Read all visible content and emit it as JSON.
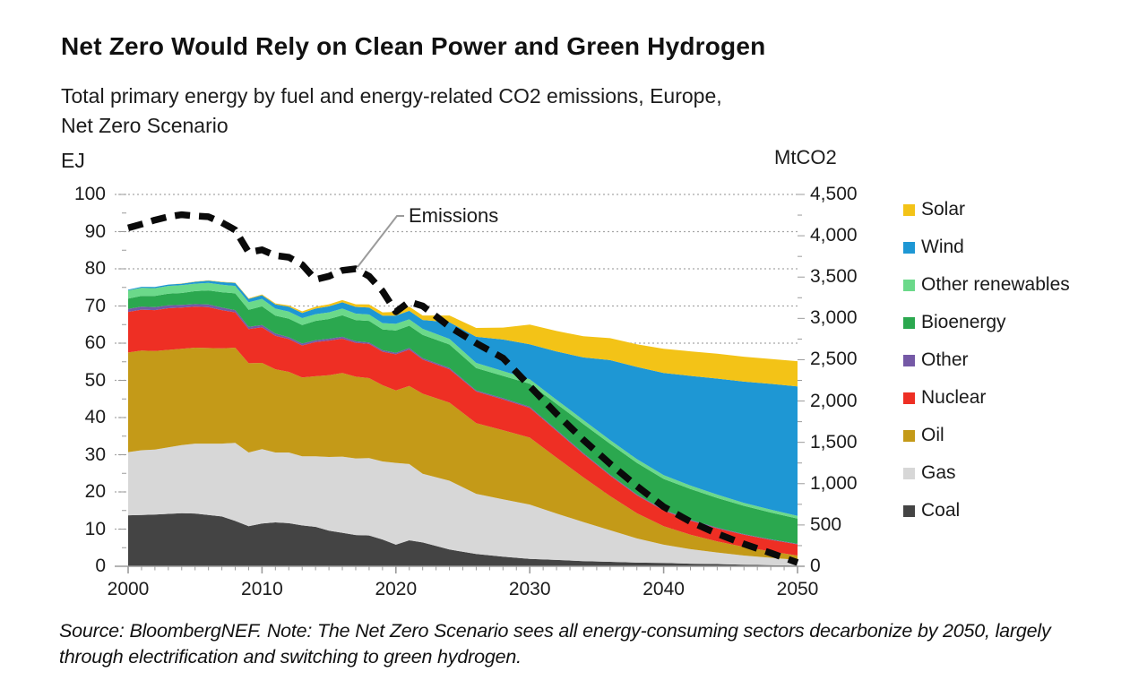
{
  "header": {
    "title": "Net Zero Would Rely on Clean Power and Green Hydrogen",
    "subtitle": "Total primary energy by fuel and energy-related CO2 emissions, Europe,\nNet Zero Scenario"
  },
  "chart_data": {
    "type": "area",
    "stacked": true,
    "title": "Net Zero Would Rely on Clean Power and Green Hydrogen",
    "x": [
      2000,
      2001,
      2002,
      2003,
      2004,
      2005,
      2006,
      2007,
      2008,
      2009,
      2010,
      2011,
      2012,
      2013,
      2014,
      2015,
      2016,
      2017,
      2018,
      2019,
      2020,
      2021,
      2022,
      2024,
      2026,
      2028,
      2030,
      2032,
      2034,
      2036,
      2038,
      2040,
      2042,
      2044,
      2046,
      2048,
      2050
    ],
    "series": [
      {
        "name": "Coal",
        "color": "#444444",
        "values": [
          13.7,
          13.8,
          13.9,
          14.1,
          14.3,
          14.2,
          13.8,
          13.4,
          12.2,
          10.8,
          11.5,
          11.8,
          11.6,
          11.0,
          10.6,
          9.6,
          9.0,
          8.4,
          8.3,
          7.2,
          5.8,
          7.0,
          6.4,
          4.5,
          3.3,
          2.6,
          2.0,
          1.7,
          1.4,
          1.2,
          1.0,
          0.9,
          0.7,
          0.6,
          0.4,
          0.3,
          0.2
        ]
      },
      {
        "name": "Gas",
        "color": "#D7D7D7",
        "values": [
          17.0,
          17.4,
          17.5,
          17.9,
          18.3,
          18.8,
          19.2,
          19.6,
          21.0,
          19.8,
          20.0,
          18.8,
          19.0,
          18.6,
          19.0,
          19.8,
          20.5,
          20.6,
          20.8,
          21.0,
          22.0,
          20.5,
          18.5,
          18.5,
          16.2,
          15.4,
          14.6,
          12.5,
          10.5,
          8.5,
          6.5,
          4.9,
          3.9,
          3.1,
          2.5,
          2.0,
          1.5
        ]
      },
      {
        "name": "Oil",
        "color": "#C49A18",
        "values": [
          26.8,
          26.8,
          26.5,
          26.2,
          25.9,
          25.8,
          25.7,
          25.6,
          25.6,
          24.0,
          23.2,
          22.4,
          21.7,
          21.2,
          21.5,
          22.0,
          22.5,
          22.0,
          21.5,
          20.5,
          19.5,
          21.0,
          21.5,
          21.0,
          19.0,
          18.6,
          18.0,
          15.0,
          12.0,
          9.2,
          6.8,
          5.0,
          3.9,
          3.0,
          2.3,
          1.7,
          1.2
        ]
      },
      {
        "name": "Nuclear",
        "color": "#EE2F24",
        "values": [
          10.9,
          11.0,
          11.0,
          11.2,
          11.1,
          11.0,
          11.0,
          10.3,
          9.5,
          9.2,
          9.6,
          9.0,
          8.8,
          8.6,
          9.2,
          9.3,
          9.2,
          9.1,
          9.2,
          9.0,
          9.7,
          9.8,
          9.2,
          9.0,
          8.5,
          8.3,
          8.0,
          7.2,
          6.3,
          5.5,
          4.8,
          4.2,
          3.8,
          3.5,
          3.3,
          3.1,
          3.0
        ]
      },
      {
        "name": "Other",
        "color": "#7559A6",
        "values": [
          0.8,
          0.8,
          0.8,
          0.8,
          0.7,
          0.7,
          0.7,
          0.7,
          0.6,
          0.6,
          0.6,
          0.6,
          0.5,
          0.5,
          0.5,
          0.5,
          0.5,
          0.4,
          0.4,
          0.4,
          0.4,
          0.4,
          0.35,
          0.35,
          0.3,
          0.3,
          0.3,
          0.28,
          0.26,
          0.24,
          0.22,
          0.2,
          0.2,
          0.18,
          0.16,
          0.16,
          0.15
        ]
      },
      {
        "name": "Bioenergy",
        "color": "#2BA84F",
        "values": [
          2.8,
          2.9,
          3.0,
          3.1,
          3.2,
          3.5,
          3.8,
          4.1,
          4.5,
          4.6,
          5.0,
          4.8,
          5.0,
          5.0,
          5.2,
          5.3,
          5.8,
          5.7,
          5.8,
          5.6,
          6.0,
          6.0,
          6.3,
          6.3,
          6.0,
          6.0,
          6.2,
          7.0,
          7.8,
          8.3,
          8.5,
          8.3,
          8.3,
          8.0,
          7.6,
          7.2,
          6.8
        ]
      },
      {
        "name": "Other renewables",
        "color": "#6BD98A",
        "values": [
          2.2,
          2.2,
          2.1,
          2.1,
          2.1,
          2.0,
          2.0,
          2.0,
          2.0,
          2.0,
          2.0,
          1.9,
          1.9,
          1.85,
          1.8,
          1.8,
          1.8,
          1.75,
          1.7,
          1.7,
          1.8,
          1.7,
          1.6,
          1.5,
          1.4,
          1.3,
          1.2,
          1.1,
          1.1,
          1.0,
          1.0,
          1.0,
          0.9,
          0.9,
          0.8,
          0.8,
          0.7
        ]
      },
      {
        "name": "Wind",
        "color": "#1E97D4",
        "values": [
          0.2,
          0.25,
          0.3,
          0.35,
          0.4,
          0.5,
          0.6,
          0.7,
          0.8,
          0.9,
          1.0,
          1.1,
          1.3,
          1.4,
          1.5,
          1.6,
          1.7,
          1.8,
          1.9,
          2.0,
          2.2,
          2.3,
          2.4,
          4.5,
          7.0,
          8.5,
          9.4,
          13.0,
          16.8,
          21.5,
          24.8,
          27.5,
          29.5,
          31.2,
          32.6,
          33.8,
          34.8
        ]
      },
      {
        "name": "Solar",
        "color": "#F3C317",
        "values": [
          0.0,
          0.0,
          0.0,
          0.0,
          0.05,
          0.05,
          0.1,
          0.1,
          0.1,
          0.15,
          0.2,
          0.3,
          0.35,
          0.4,
          0.5,
          0.55,
          0.6,
          0.7,
          0.8,
          0.9,
          1.0,
          1.1,
          1.2,
          1.8,
          2.4,
          3.2,
          5.3,
          5.5,
          5.7,
          5.9,
          6.1,
          6.5,
          6.6,
          6.7,
          6.7,
          6.7,
          6.8
        ]
      }
    ],
    "line_series": {
      "name": "Emissions",
      "color": "#0a0a0a",
      "style": "dashed",
      "axis": "right",
      "values": [
        4095,
        4140,
        4190,
        4230,
        4255,
        4240,
        4230,
        4160,
        4070,
        3800,
        3830,
        3760,
        3740,
        3650,
        3470,
        3510,
        3580,
        3600,
        3510,
        3330,
        3080,
        3200,
        3150,
        2900,
        2700,
        2520,
        2180,
        1845,
        1530,
        1240,
        970,
        720,
        540,
        395,
        270,
        160,
        45
      ]
    },
    "annotation": {
      "label": "Emissions"
    },
    "left_axis": {
      "title": "EJ",
      "min": 0,
      "max": 100,
      "step": 10,
      "tick_labels": [
        "100",
        "90",
        "80",
        "70",
        "60",
        "50",
        "40",
        "30",
        "20",
        "10",
        "0"
      ]
    },
    "right_axis": {
      "title": "MtCO2",
      "min": 0,
      "max": 4500,
      "step": 500,
      "tick_labels": [
        "4,500",
        "4,000",
        "3,500",
        "3,000",
        "2,500",
        "2,000",
        "1,500",
        "1,000",
        "500",
        "0"
      ]
    },
    "x_axis": {
      "range": [
        2000,
        2050
      ],
      "tick_labels": [
        "2000",
        "2010",
        "2020",
        "2030",
        "2040",
        "2050"
      ]
    },
    "legend_position": "right",
    "grid": true
  },
  "footer": {
    "source_note": "Source: BloombergNEF. Note: The Net Zero Scenario sees all energy-consuming sectors decarbonize by 2050, largely through electrification and switching to green hydrogen."
  }
}
